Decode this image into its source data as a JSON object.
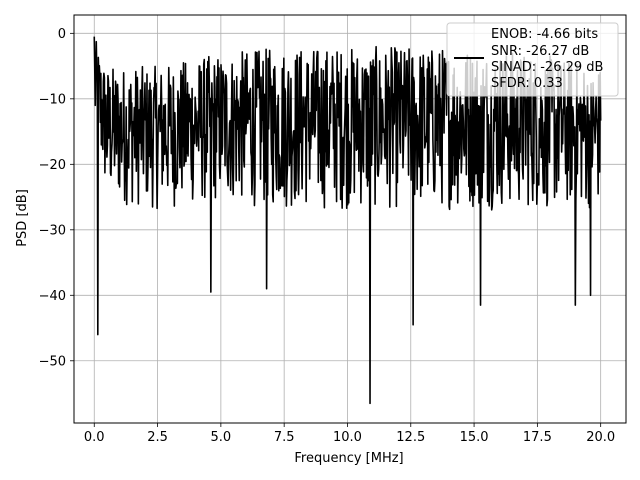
{
  "chart_data": {
    "type": "line",
    "title": "",
    "xlabel": "Frequency [MHz]",
    "ylabel": "PSD [dB]",
    "xlim": [
      -0.8,
      21.0
    ],
    "ylim": [
      -59.5,
      2.8
    ],
    "xticks": [
      0.0,
      2.5,
      5.0,
      7.5,
      10.0,
      12.5,
      15.0,
      17.5,
      20.0
    ],
    "xtick_labels": [
      "0.0",
      "2.5",
      "5.0",
      "7.5",
      "10.0",
      "12.5",
      "15.0",
      "17.5",
      "20.0"
    ],
    "yticks": [
      0,
      -10,
      -20,
      -30,
      -40,
      -50
    ],
    "ytick_labels": [
      "0",
      "−10",
      "−20",
      "−30",
      "−40",
      "−50"
    ],
    "grid": true,
    "line_color": "#000000",
    "legend": {
      "placement": "upper-right",
      "entries": [
        "ENOB: -4.66 bits",
        "SNR: -26.27 dB",
        "SINAD: -26.29 dB",
        "SFDR: 0.33"
      ]
    },
    "series": [
      {
        "x_start": 0.0,
        "x_end": 20.0,
        "points": 1000,
        "envelope_approx": {
          "upper": [
            [
              0.0,
              -0.5
            ],
            [
              0.5,
              -5
            ],
            [
              2.5,
              -5
            ],
            [
              5.0,
              -3
            ],
            [
              7.5,
              -2
            ],
            [
              10.0,
              -2
            ],
            [
              12.5,
              -2
            ],
            [
              15.0,
              -2
            ],
            [
              17.5,
              -3
            ],
            [
              20.0,
              -5
            ]
          ],
          "lower": [
            [
              0.0,
              -16
            ],
            [
              0.5,
              -26
            ],
            [
              2.5,
              -27
            ],
            [
              5.0,
              -26
            ],
            [
              7.5,
              -27
            ],
            [
              10.0,
              -27
            ],
            [
              12.5,
              -27
            ],
            [
              15.0,
              -27
            ],
            [
              17.5,
              -27
            ],
            [
              20.0,
              -27
            ]
          ]
        },
        "notable_dips": [
          {
            "x": 0.15,
            "y": -46
          },
          {
            "x": 4.6,
            "y": -39.5
          },
          {
            "x": 6.8,
            "y": -39
          },
          {
            "x": 10.9,
            "y": -56.5
          },
          {
            "x": 12.6,
            "y": -44.5
          },
          {
            "x": 15.25,
            "y": -41.5
          },
          {
            "x": 19.0,
            "y": -41.5
          },
          {
            "x": 19.6,
            "y": -40
          }
        ]
      }
    ]
  }
}
